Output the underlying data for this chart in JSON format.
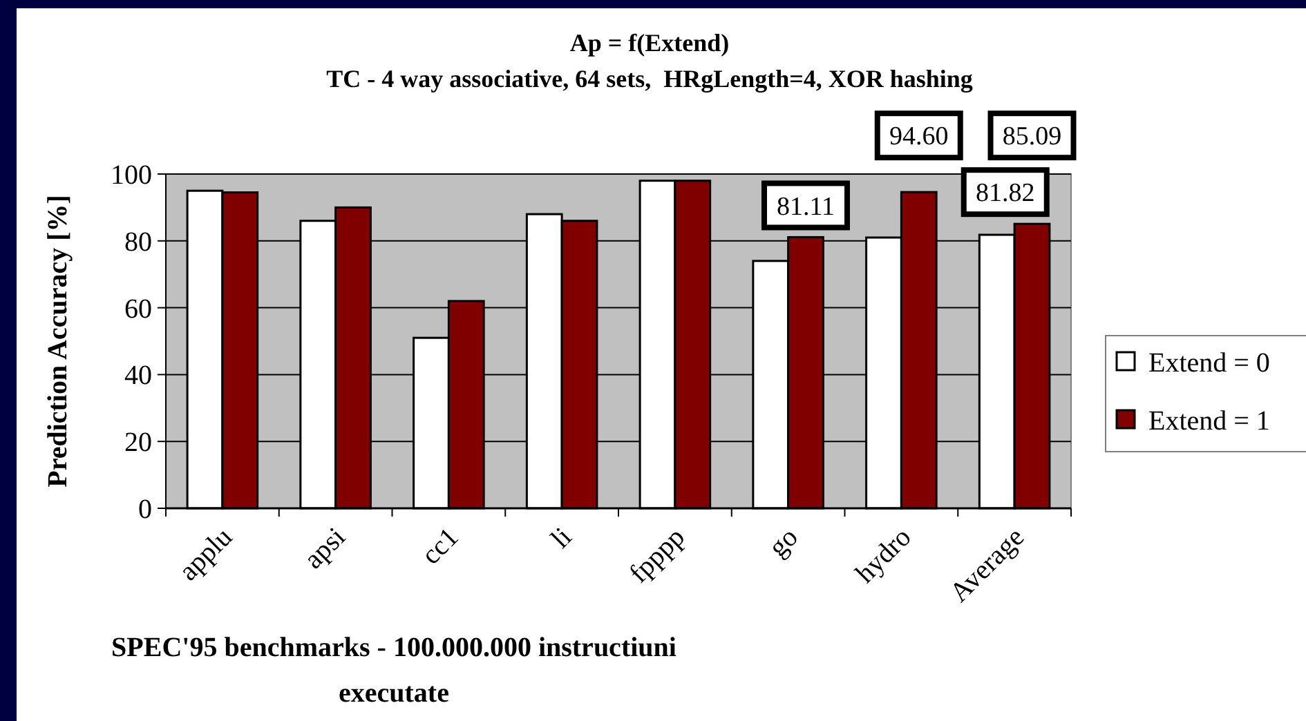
{
  "chart_data": {
    "type": "bar",
    "title": "Ap = f(Extend)",
    "subtitle": "TC - 4 way associative, 64 sets,  HRgLength=4, XOR hashing",
    "xlabel": "SPEC'95 benchmarks - 100.000.000 instructiuni executate",
    "ylabel": "Prediction Accuracy [%]",
    "categories": [
      "applu",
      "apsi",
      "cc1",
      "li",
      "fpppp",
      "go",
      "hydro",
      "Average"
    ],
    "series": [
      {
        "name": "Extend = 0",
        "color": "#ffffff",
        "values": [
          95,
          86,
          51,
          88,
          98,
          74,
          81,
          81.82
        ],
        "value_labels": [
          null,
          null,
          null,
          null,
          null,
          null,
          null,
          "81.82"
        ]
      },
      {
        "name": "Extend = 1",
        "color": "#800000",
        "values": [
          94.5,
          90,
          62,
          86,
          98,
          81.11,
          94.6,
          85.09
        ],
        "value_labels": [
          null,
          null,
          null,
          null,
          null,
          "81.11",
          "94.60",
          "85.09"
        ]
      }
    ],
    "ylim": [
      0,
      100
    ],
    "yticks": [
      0,
      20,
      40,
      60,
      80,
      100
    ],
    "grid": "y",
    "legend": "right"
  }
}
